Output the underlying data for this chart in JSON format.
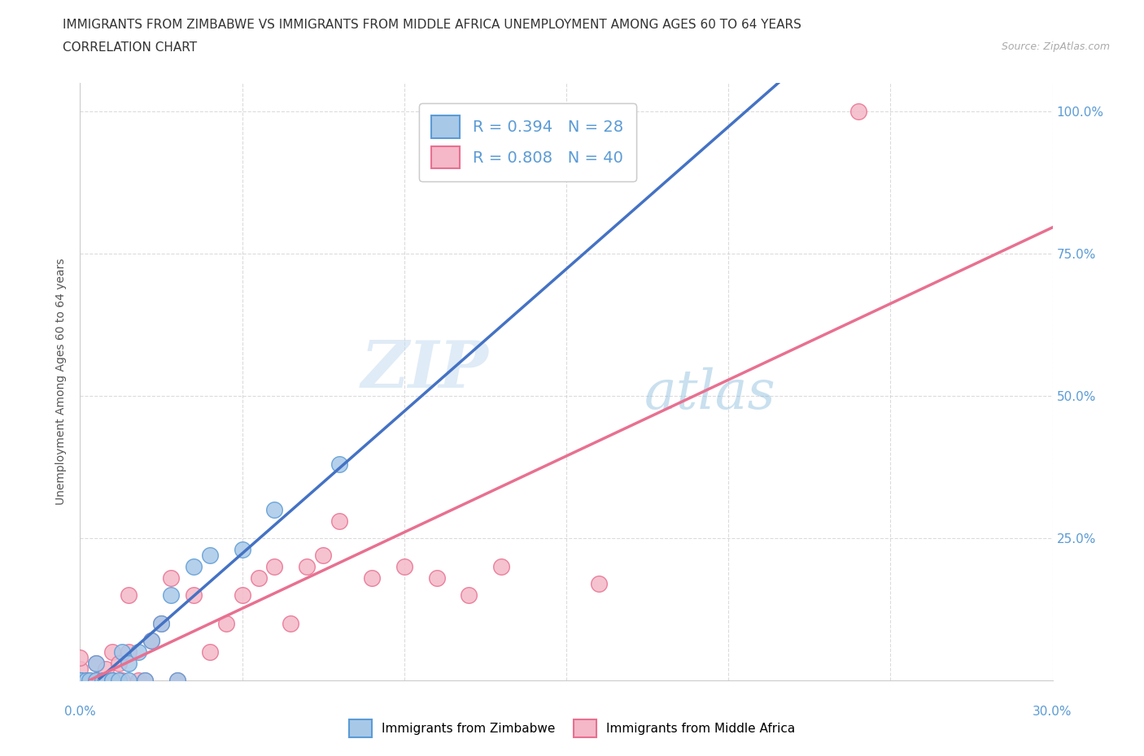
{
  "title_line1": "IMMIGRANTS FROM ZIMBABWE VS IMMIGRANTS FROM MIDDLE AFRICA UNEMPLOYMENT AMONG AGES 60 TO 64 YEARS",
  "title_line2": "CORRELATION CHART",
  "source": "Source: ZipAtlas.com",
  "ylabel": "Unemployment Among Ages 60 to 64 years",
  "x_min": 0.0,
  "x_max": 0.3,
  "y_min": 0.0,
  "y_max": 1.05,
  "x_ticks": [
    0.0,
    0.05,
    0.1,
    0.15,
    0.2,
    0.25,
    0.3
  ],
  "y_ticks": [
    0.0,
    0.25,
    0.5,
    0.75,
    1.0
  ],
  "y_tick_labels": [
    "",
    "25.0%",
    "50.0%",
    "75.0%",
    "100.0%"
  ],
  "zimbabwe_color": "#a8c8e8",
  "zimbabwe_edge_color": "#5b9bd5",
  "middle_africa_color": "#f4b8c8",
  "middle_africa_edge_color": "#e87090",
  "zimbabwe_line_color": "#4472c4",
  "middle_africa_line_color": "#e87090",
  "zimbabwe_R": 0.394,
  "zimbabwe_N": 28,
  "middle_africa_R": 0.808,
  "middle_africa_N": 40,
  "zimbabwe_scatter_x": [
    0.0,
    0.0,
    0.0,
    0.0,
    0.0,
    0.002,
    0.003,
    0.005,
    0.005,
    0.007,
    0.008,
    0.01,
    0.01,
    0.012,
    0.013,
    0.015,
    0.015,
    0.018,
    0.02,
    0.022,
    0.025,
    0.028,
    0.03,
    0.035,
    0.04,
    0.05,
    0.06,
    0.08
  ],
  "zimbabwe_scatter_y": [
    0.0,
    0.0,
    0.0,
    0.0,
    0.0,
    0.0,
    0.0,
    0.0,
    0.03,
    0.0,
    0.0,
    0.0,
    0.0,
    0.0,
    0.05,
    0.0,
    0.03,
    0.05,
    0.0,
    0.07,
    0.1,
    0.15,
    0.0,
    0.2,
    0.22,
    0.23,
    0.3,
    0.38
  ],
  "middle_africa_scatter_x": [
    0.0,
    0.0,
    0.0,
    0.0,
    0.0,
    0.002,
    0.003,
    0.005,
    0.005,
    0.007,
    0.008,
    0.01,
    0.01,
    0.012,
    0.013,
    0.015,
    0.015,
    0.018,
    0.02,
    0.022,
    0.025,
    0.028,
    0.03,
    0.035,
    0.04,
    0.045,
    0.05,
    0.055,
    0.06,
    0.065,
    0.07,
    0.075,
    0.08,
    0.09,
    0.1,
    0.11,
    0.12,
    0.13,
    0.16,
    0.24
  ],
  "middle_africa_scatter_y": [
    0.0,
    0.0,
    0.0,
    0.02,
    0.04,
    0.0,
    0.0,
    0.0,
    0.03,
    0.0,
    0.02,
    0.0,
    0.05,
    0.03,
    0.0,
    0.05,
    0.15,
    0.0,
    0.0,
    0.07,
    0.1,
    0.18,
    0.0,
    0.15,
    0.05,
    0.1,
    0.15,
    0.18,
    0.2,
    0.1,
    0.2,
    0.22,
    0.28,
    0.18,
    0.2,
    0.18,
    0.15,
    0.2,
    0.17,
    1.0
  ],
  "watermark_zip": "ZIP",
  "watermark_atlas": "atlas",
  "title_fontsize": 11,
  "axis_label_fontsize": 10,
  "tick_fontsize": 11,
  "legend_fontsize": 14,
  "tick_color": "#5b9bd5",
  "background_color": "#ffffff",
  "grid_color": "#cccccc",
  "grid_alpha": 0.7,
  "spine_color": "#cccccc"
}
